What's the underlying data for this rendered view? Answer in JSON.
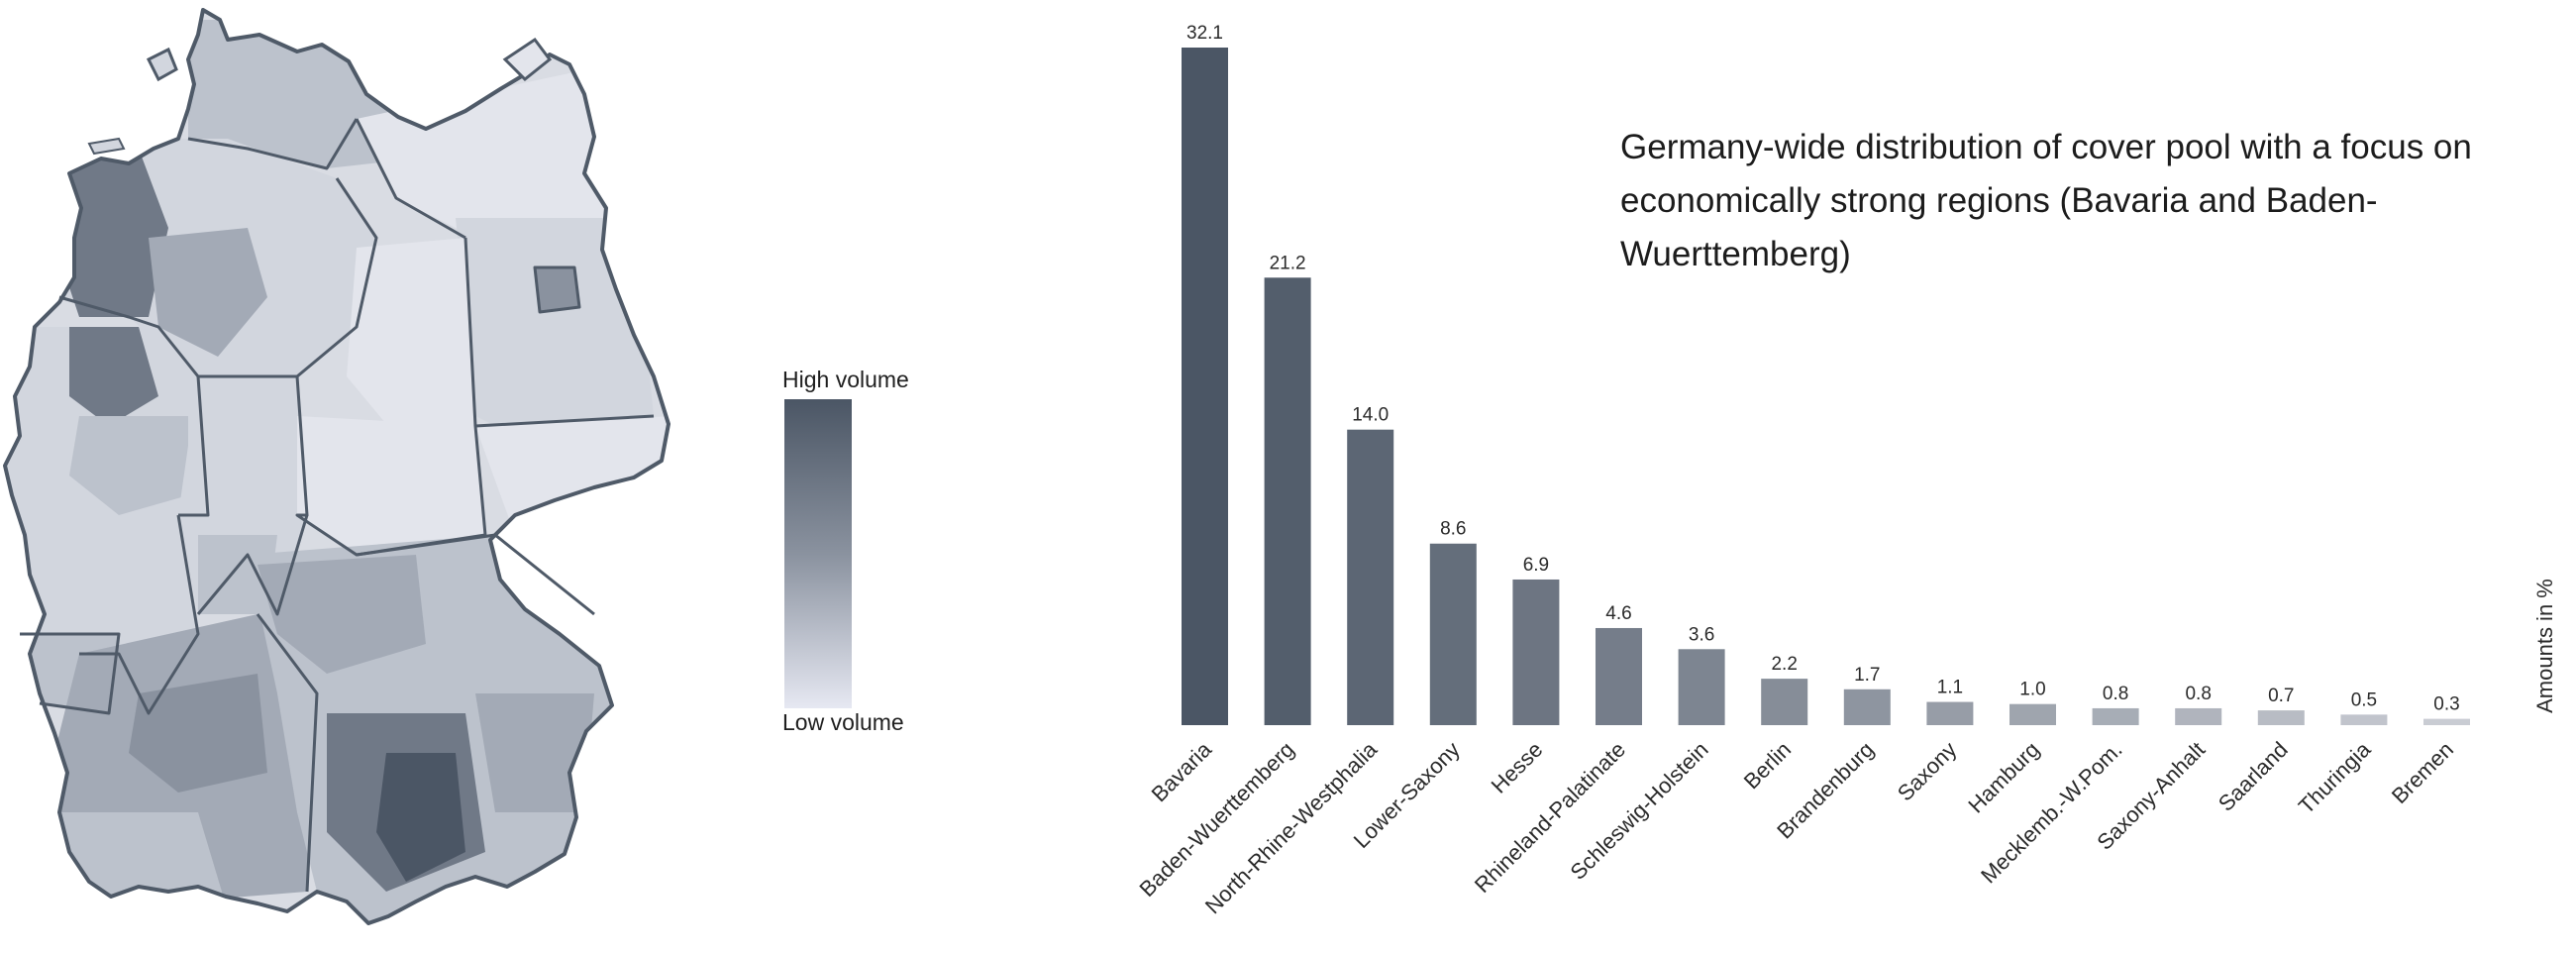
{
  "legend": {
    "high_label": "High volume",
    "low_label": "Low volume",
    "gradient_colors": [
      "#4b5665",
      "#8a929f",
      "#e6e8f2"
    ]
  },
  "colors": {
    "map_border": "#4f5a68",
    "region_fills": [
      "#e3e5ec",
      "#d2d6de",
      "#bcc2cc",
      "#a3aab6",
      "#8a929f",
      "#707987",
      "#5a6473",
      "#4b5665"
    ],
    "bar_dark": "#4b5665",
    "bar_light": "#c9ccd3"
  },
  "chart_data": {
    "type": "bar",
    "title": "Germany-wide distribution of cover pool with a focus on economically strong regions (Bavaria and Baden-Wuerttemberg)",
    "ylabel": "Amounts in %",
    "xlabel": "",
    "categories": [
      "Bavaria",
      "Baden-Wuerttemberg",
      "North-Rhine-Westphalia",
      "Lower-Saxony",
      "Hesse",
      "Rhineland-Palatinate",
      "Schleswig-Holstein",
      "Berlin",
      "Brandenburg",
      "Saxony",
      "Hamburg",
      "Mecklemb.-W.Pom.",
      "Saxony-Anhalt",
      "Saarland",
      "Thuringia",
      "Bremen"
    ],
    "values": [
      32.1,
      21.2,
      14.0,
      8.6,
      6.9,
      4.6,
      3.6,
      2.2,
      1.7,
      1.1,
      1.0,
      0.8,
      0.8,
      0.7,
      0.5,
      0.3
    ],
    "value_labels": [
      "32.1",
      "21.2",
      "14.0",
      "8.6",
      "6.9",
      "4.6",
      "3.6",
      "2.2",
      "1.7",
      "1.1",
      "1.0",
      "0.8",
      "0.8",
      "0.7",
      "0.5",
      "0.3"
    ],
    "ylim": [
      0,
      32.1
    ],
    "grid": false,
    "data_labels": "above-bars"
  }
}
